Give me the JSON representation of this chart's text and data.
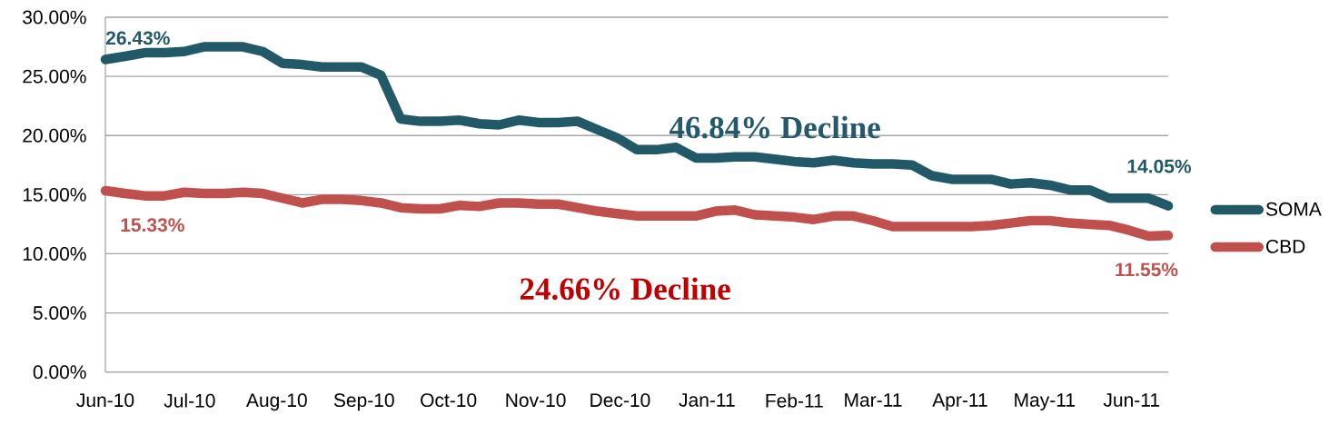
{
  "chart_data": {
    "type": "line",
    "x": [
      "2010-06-01",
      "2010-06-08",
      "2010-06-15",
      "2010-06-22",
      "2010-06-29",
      "2010-07-06",
      "2010-07-13",
      "2010-07-20",
      "2010-07-27",
      "2010-08-03",
      "2010-08-10",
      "2010-08-17",
      "2010-08-24",
      "2010-08-31",
      "2010-09-07",
      "2010-09-14",
      "2010-09-21",
      "2010-09-28",
      "2010-10-05",
      "2010-10-12",
      "2010-10-19",
      "2010-10-26",
      "2010-11-02",
      "2010-11-09",
      "2010-11-16",
      "2010-11-23",
      "2010-11-30",
      "2010-12-07",
      "2010-12-14",
      "2010-12-21",
      "2010-12-28",
      "2011-01-04",
      "2011-01-11",
      "2011-01-18",
      "2011-01-25",
      "2011-02-01",
      "2011-02-08",
      "2011-02-15",
      "2011-02-22",
      "2011-03-01",
      "2011-03-08",
      "2011-03-15",
      "2011-03-22",
      "2011-03-29",
      "2011-04-05",
      "2011-04-12",
      "2011-04-19",
      "2011-04-26",
      "2011-05-03",
      "2011-05-10",
      "2011-05-17",
      "2011-05-24",
      "2011-05-31",
      "2011-06-07",
      "2011-06-14"
    ],
    "series": [
      {
        "name": "SOMA",
        "color": "#215968",
        "values": [
          26.43,
          26.7,
          27.0,
          27.0,
          27.1,
          27.5,
          27.5,
          27.5,
          27.1,
          26.1,
          26.0,
          25.8,
          25.8,
          25.8,
          25.1,
          21.4,
          21.2,
          21.2,
          21.3,
          21.0,
          20.9,
          21.3,
          21.1,
          21.1,
          21.2,
          20.5,
          19.8,
          18.8,
          18.8,
          19.0,
          18.1,
          18.1,
          18.2,
          18.2,
          18.0,
          17.8,
          17.7,
          17.9,
          17.7,
          17.6,
          17.6,
          17.5,
          16.6,
          16.3,
          16.3,
          16.3,
          15.9,
          16.0,
          15.8,
          15.4,
          15.4,
          14.7,
          14.7,
          14.7,
          14.05
        ],
        "value_labels": [
          "26.43%",
          null,
          null,
          null,
          null,
          null,
          null,
          null,
          null,
          null,
          null,
          null,
          null,
          null,
          null,
          null,
          null,
          null,
          null,
          null,
          null,
          null,
          null,
          null,
          null,
          null,
          null,
          null,
          null,
          null,
          null,
          null,
          null,
          null,
          null,
          null,
          null,
          null,
          null,
          null,
          null,
          null,
          null,
          null,
          null,
          null,
          null,
          null,
          null,
          null,
          null,
          null,
          null,
          null,
          "14.05%"
        ]
      },
      {
        "name": "CBD",
        "color": "#C0504D",
        "values": [
          15.33,
          15.1,
          14.9,
          14.9,
          15.2,
          15.1,
          15.1,
          15.2,
          15.1,
          14.7,
          14.3,
          14.6,
          14.6,
          14.5,
          14.3,
          13.9,
          13.8,
          13.8,
          14.1,
          14.0,
          14.3,
          14.3,
          14.2,
          14.2,
          13.9,
          13.6,
          13.4,
          13.2,
          13.2,
          13.2,
          13.2,
          13.6,
          13.7,
          13.3,
          13.2,
          13.1,
          12.9,
          13.2,
          13.2,
          12.8,
          12.3,
          12.3,
          12.3,
          12.3,
          12.3,
          12.4,
          12.6,
          12.8,
          12.8,
          12.6,
          12.5,
          12.4,
          12.0,
          11.5,
          11.55
        ],
        "value_labels": [
          "15.33%",
          null,
          null,
          null,
          null,
          null,
          null,
          null,
          null,
          null,
          null,
          null,
          null,
          null,
          null,
          null,
          null,
          null,
          null,
          null,
          null,
          null,
          null,
          null,
          null,
          null,
          null,
          null,
          null,
          null,
          null,
          null,
          null,
          null,
          null,
          null,
          null,
          null,
          null,
          null,
          null,
          null,
          null,
          null,
          null,
          null,
          null,
          null,
          null,
          null,
          null,
          null,
          null,
          null,
          "11.55%"
        ]
      }
    ],
    "xlim": [
      "2010-06-01",
      "2011-06-14"
    ],
    "xticks": [
      {
        "value": "2010-06-01",
        "label": "Jun-10"
      },
      {
        "value": "2010-07-01",
        "label": "Jul-10"
      },
      {
        "value": "2010-08-01",
        "label": "Aug-10"
      },
      {
        "value": "2010-09-01",
        "label": "Sep-10"
      },
      {
        "value": "2010-10-01",
        "label": "Oct-10"
      },
      {
        "value": "2010-11-01",
        "label": "Nov-10"
      },
      {
        "value": "2010-12-01",
        "label": "Dec-10"
      },
      {
        "value": "2011-01-01",
        "label": "Jan-11"
      },
      {
        "value": "2011-02-01",
        "label": "Feb-11"
      },
      {
        "value": "2011-03-01",
        "label": "Mar-11"
      },
      {
        "value": "2011-04-01",
        "label": "Apr-11"
      },
      {
        "value": "2011-05-01",
        "label": "May-11"
      },
      {
        "value": "2011-06-01",
        "label": "Jun-11"
      }
    ],
    "ylim": [
      0,
      30
    ],
    "yticks": [
      {
        "value": 0,
        "label": "0.00%"
      },
      {
        "value": 5,
        "label": "5.00%"
      },
      {
        "value": 10,
        "label": "10.00%"
      },
      {
        "value": 15,
        "label": "15.00%"
      },
      {
        "value": 20,
        "label": "20.00%"
      },
      {
        "value": 25,
        "label": "25.00%"
      },
      {
        "value": 30,
        "label": "30.00%"
      }
    ],
    "grid": "y",
    "legend": "right",
    "annotations": [
      "46.84% Decline",
      "24.66% Decline"
    ]
  }
}
